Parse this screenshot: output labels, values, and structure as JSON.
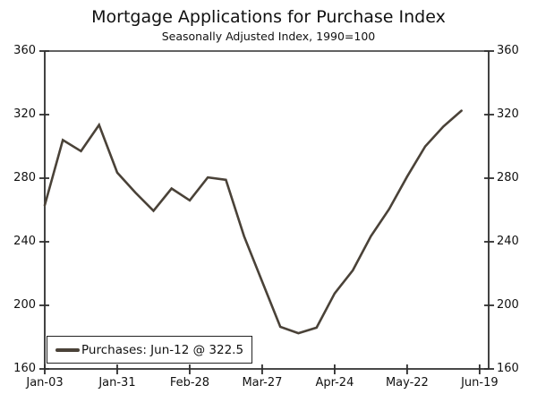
{
  "colors": {
    "line": "#4a4238",
    "axis": "#2e2e2e",
    "text": "#111111",
    "background": "#ffffff"
  },
  "legend": {
    "label": "Purchases: Jun-12 @ 322.5"
  },
  "chart_data": {
    "type": "line",
    "title": "Mortgage Applications for Purchase Index",
    "subtitle": "Seasonally Adjusted Index, 1990=100",
    "xlabel": "",
    "ylabel": "",
    "ylim": [
      160,
      360
    ],
    "y_ticks": [
      360,
      320,
      280,
      240,
      200,
      160
    ],
    "y_axis_sides": "both",
    "grid": "off",
    "x_tick_labels": [
      "Jan-03",
      "Jan-31",
      "Feb-28",
      "Mar-27",
      "Apr-24",
      "May-22",
      "Jun-19"
    ],
    "weeks_per_x_tick": 4,
    "x_total_weeks_span": 24.5,
    "legend_position": "bottom-left",
    "series": [
      {
        "name": "Purchases",
        "last_point_label": "Jun-12 @ 322.5",
        "x": [
          "Jan-03",
          "Jan-10",
          "Jan-17",
          "Jan-24",
          "Jan-31",
          "Feb-07",
          "Feb-14",
          "Feb-21",
          "Feb-28",
          "Mar-06",
          "Mar-13",
          "Mar-20",
          "Mar-27",
          "Apr-03",
          "Apr-10",
          "Apr-17",
          "Apr-24",
          "May-01",
          "May-08",
          "May-15",
          "May-22",
          "May-29",
          "Jun-05",
          "Jun-12"
        ],
        "values": [
          263,
          304,
          297,
          313.5,
          283.5,
          271,
          259.5,
          273.5,
          266,
          280.5,
          279,
          243.5,
          215,
          186.5,
          182.5,
          186,
          207.5,
          222,
          243.5,
          260.5,
          281,
          300,
          312.5,
          322.5
        ]
      }
    ]
  }
}
